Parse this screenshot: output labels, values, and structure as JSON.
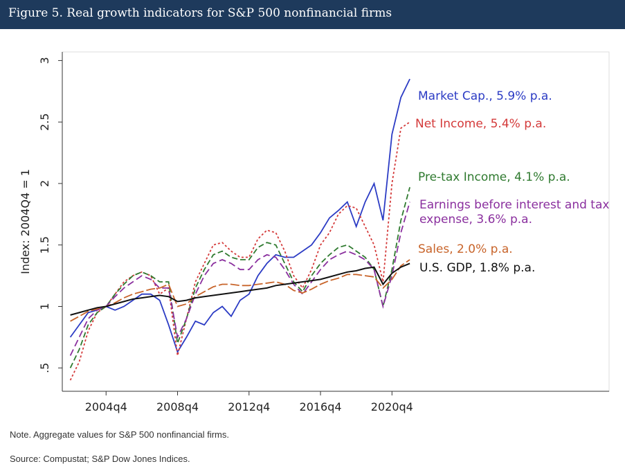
{
  "chart_data": {
    "type": "line",
    "title": "Figure 5. Real growth indicators for S&P 500 nonfinancial firms",
    "ylabel": "Index: 2004Q4 = 1",
    "note": "Note. Aggregate values for S&P 500 nonfinancial firms.",
    "source": "Source: Compustat; S&P Dow Jones Indices.",
    "x": [
      2002.75,
      2003.25,
      2003.75,
      2004.25,
      2004.75,
      2005.25,
      2005.75,
      2006.25,
      2006.75,
      2007.25,
      2007.75,
      2008.25,
      2008.75,
      2009.25,
      2009.75,
      2010.25,
      2010.75,
      2011.25,
      2011.75,
      2012.25,
      2012.75,
      2013.25,
      2013.75,
      2014.25,
      2014.75,
      2015.25,
      2015.75,
      2016.25,
      2016.75,
      2017.25,
      2017.75,
      2018.25,
      2018.75,
      2019.25,
      2019.75,
      2020.25,
      2020.75,
      2021.25,
      2021.75
    ],
    "xlim": [
      2002.3,
      2032.9
    ],
    "xticks": [
      {
        "value": 2004.75,
        "label": "2004q4"
      },
      {
        "value": 2008.75,
        "label": "2008q4"
      },
      {
        "value": 2012.75,
        "label": "2012q4"
      },
      {
        "value": 2016.75,
        "label": "2016q4"
      },
      {
        "value": 2020.75,
        "label": "2020q4"
      }
    ],
    "ylim": [
      0.31,
      3.07
    ],
    "yticks": [
      {
        "value": 0.5,
        "label": ".5"
      },
      1,
      1.5,
      2,
      2.5,
      3
    ],
    "series": [
      {
        "name": "Market Cap., 5.9% p.a.",
        "color": "#2b3bc4",
        "values": [
          0.75,
          0.85,
          0.95,
          0.97,
          1.0,
          0.97,
          1.0,
          1.05,
          1.1,
          1.1,
          1.05,
          0.85,
          0.63,
          0.75,
          0.88,
          0.85,
          0.95,
          1.0,
          0.92,
          1.05,
          1.1,
          1.25,
          1.35,
          1.42,
          1.4,
          1.4,
          1.45,
          1.5,
          1.6,
          1.72,
          1.78,
          1.85,
          1.65,
          1.85,
          2.0,
          1.7,
          2.4,
          2.7,
          2.85
        ]
      },
      {
        "name": "Net Income, 5.4% p.a.",
        "color": "#d43a3a",
        "values": [
          0.4,
          0.55,
          0.8,
          0.95,
          1.0,
          1.1,
          1.2,
          1.25,
          1.28,
          1.25,
          1.1,
          1.15,
          0.6,
          0.9,
          1.2,
          1.35,
          1.5,
          1.52,
          1.45,
          1.4,
          1.4,
          1.55,
          1.62,
          1.6,
          1.45,
          1.25,
          1.15,
          1.3,
          1.5,
          1.6,
          1.75,
          1.82,
          1.8,
          1.65,
          1.5,
          1.2,
          2.0,
          2.45,
          2.5
        ]
      },
      {
        "name": "Pre-tax Income, 4.1% p.a.",
        "color": "#2f7a2f",
        "values": [
          0.5,
          0.65,
          0.85,
          0.95,
          1.0,
          1.1,
          1.18,
          1.25,
          1.28,
          1.25,
          1.2,
          1.2,
          0.7,
          0.9,
          1.15,
          1.3,
          1.42,
          1.45,
          1.4,
          1.38,
          1.38,
          1.48,
          1.52,
          1.5,
          1.35,
          1.2,
          1.12,
          1.25,
          1.35,
          1.42,
          1.48,
          1.5,
          1.45,
          1.4,
          1.3,
          1.0,
          1.3,
          1.7,
          1.97
        ]
      },
      {
        "name": "Earnings before interest and tax expense, 3.6% p.a.",
        "color": "#8a2f9e",
        "values": [
          0.6,
          0.75,
          0.9,
          0.97,
          1.0,
          1.08,
          1.15,
          1.2,
          1.25,
          1.22,
          1.15,
          1.15,
          0.75,
          0.9,
          1.1,
          1.25,
          1.35,
          1.38,
          1.35,
          1.3,
          1.3,
          1.38,
          1.42,
          1.4,
          1.3,
          1.18,
          1.1,
          1.2,
          1.3,
          1.38,
          1.42,
          1.45,
          1.42,
          1.38,
          1.3,
          1.0,
          1.25,
          1.6,
          1.85
        ]
      },
      {
        "name": "Sales, 2.0% p.a.",
        "color": "#c8642a",
        "values": [
          0.88,
          0.92,
          0.96,
          0.98,
          1.0,
          1.03,
          1.07,
          1.1,
          1.12,
          1.14,
          1.15,
          1.18,
          1.0,
          1.02,
          1.08,
          1.12,
          1.16,
          1.18,
          1.18,
          1.17,
          1.17,
          1.18,
          1.19,
          1.2,
          1.18,
          1.13,
          1.11,
          1.14,
          1.18,
          1.21,
          1.23,
          1.26,
          1.26,
          1.25,
          1.24,
          1.15,
          1.22,
          1.33,
          1.38
        ]
      },
      {
        "name": "U.S. GDP, 1.8% p.a.",
        "color": "#111111",
        "values": [
          0.93,
          0.95,
          0.97,
          0.99,
          1.0,
          1.02,
          1.04,
          1.06,
          1.07,
          1.08,
          1.09,
          1.08,
          1.04,
          1.05,
          1.07,
          1.08,
          1.09,
          1.1,
          1.11,
          1.12,
          1.13,
          1.14,
          1.15,
          1.17,
          1.18,
          1.19,
          1.2,
          1.21,
          1.22,
          1.24,
          1.26,
          1.28,
          1.29,
          1.31,
          1.32,
          1.18,
          1.27,
          1.32,
          1.35
        ]
      }
    ]
  }
}
